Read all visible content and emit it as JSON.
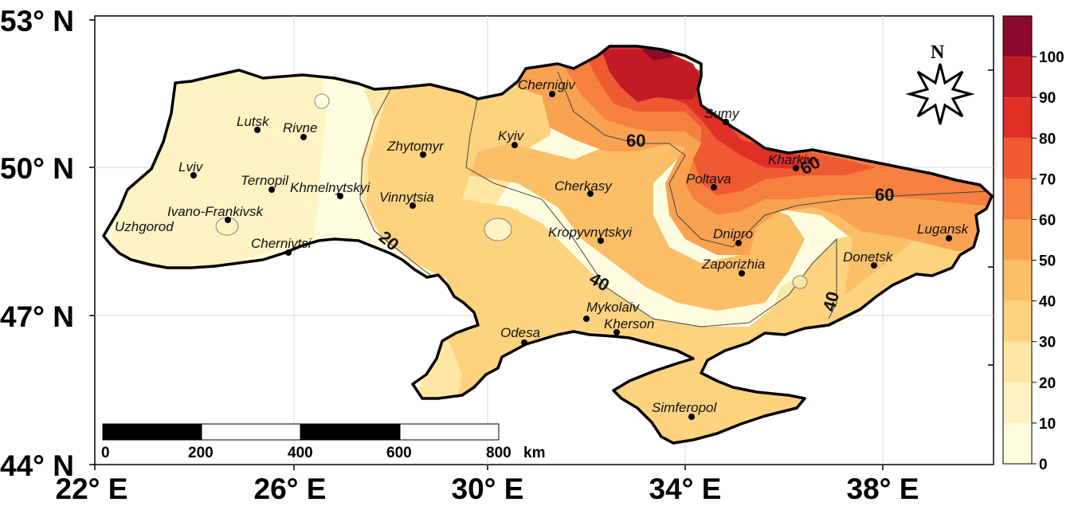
{
  "map": {
    "lat_labels": [
      "53° N",
      "50° N",
      "47° N",
      "44° N"
    ],
    "lon_labels": [
      "22° E",
      "26° E",
      "30° E",
      "34° E",
      "38° E"
    ],
    "north_arrow_label": "N",
    "scale_bar": {
      "ticks": [
        "0",
        "200",
        "400",
        "600",
        "800"
      ],
      "unit": "km"
    },
    "colorbar": {
      "ticks": [
        "0",
        "10",
        "20",
        "30",
        "40",
        "50",
        "60",
        "70",
        "80",
        "90",
        "100"
      ],
      "colors": [
        "#fffde0",
        "#fff3c4",
        "#fee7a4",
        "#fdd37f",
        "#fbbf68",
        "#f9a352",
        "#f5803f",
        "#ee5a32",
        "#df2f27",
        "#c11a24",
        "#8e0a2a"
      ]
    },
    "contour_labels": [
      "20",
      "40",
      "40",
      "60",
      "60",
      "60"
    ],
    "cities": [
      {
        "name": "Chernigiv"
      },
      {
        "name": "Sumy"
      },
      {
        "name": "Lutsk"
      },
      {
        "name": "Rivne"
      },
      {
        "name": "Zhytomyr"
      },
      {
        "name": "Kyiv"
      },
      {
        "name": "Kharkiv"
      },
      {
        "name": "Lviv"
      },
      {
        "name": "Ternopil"
      },
      {
        "name": "Khmelnytskyi"
      },
      {
        "name": "Vinnytsia"
      },
      {
        "name": "Cherkasy"
      },
      {
        "name": "Poltava"
      },
      {
        "name": "Ivano-Frankivsk"
      },
      {
        "name": "Uzhgorod"
      },
      {
        "name": "Kropyvnytskyi"
      },
      {
        "name": "Dnipro"
      },
      {
        "name": "Lugansk"
      },
      {
        "name": "Chernivtsi"
      },
      {
        "name": "Zaporizhia"
      },
      {
        "name": "Donetsk"
      },
      {
        "name": "Mykolaiv"
      },
      {
        "name": "Kherson"
      },
      {
        "name": "Odesa"
      },
      {
        "name": "Simferopol"
      }
    ]
  }
}
